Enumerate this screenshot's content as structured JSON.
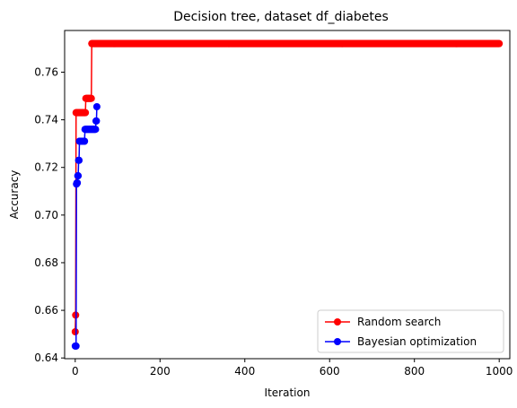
{
  "chart_data": {
    "type": "line",
    "title": "Decision tree, dataset df_diabetes",
    "xlabel": "Iteration",
    "ylabel": "Accuracy",
    "xlim": [
      -25,
      1025
    ],
    "ylim": [
      0.6397,
      0.7775
    ],
    "xticks": [
      0,
      200,
      400,
      600,
      800,
      1000
    ],
    "yticks": [
      0.64,
      0.66,
      0.68,
      0.7,
      0.72,
      0.74,
      0.76
    ],
    "ytick_labels": [
      "0.64",
      "0.66",
      "0.68",
      "0.70",
      "0.72",
      "0.74",
      "0.76"
    ],
    "grid": false,
    "legend_position": "lower right",
    "series": [
      {
        "name": "Random search",
        "color": "#ff0000",
        "marker": "circle",
        "segments": [
          {
            "x_start": 0,
            "x_end": 0,
            "y": 0.651
          },
          {
            "x_start": 1,
            "x_end": 1,
            "y": 0.658
          },
          {
            "x_start": 2,
            "x_end": 24,
            "y": 0.743
          },
          {
            "x_start": 25,
            "x_end": 38,
            "y": 0.749
          },
          {
            "x_start": 39,
            "x_end": 1000,
            "y": 0.772
          }
        ]
      },
      {
        "name": "Bayesian optimization",
        "color": "#0000ff",
        "marker": "circle",
        "segments": [
          {
            "x_start": 0,
            "x_end": 2,
            "y": 0.645
          },
          {
            "x_start": 3,
            "x_end": 3,
            "y": 0.713
          },
          {
            "x_start": 4,
            "x_end": 5,
            "y": 0.7135
          },
          {
            "x_start": 6,
            "x_end": 7,
            "y": 0.7165
          },
          {
            "x_start": 8,
            "x_end": 9,
            "y": 0.723
          },
          {
            "x_start": 10,
            "x_end": 22,
            "y": 0.731
          },
          {
            "x_start": 23,
            "x_end": 48,
            "y": 0.736
          },
          {
            "x_start": 49,
            "x_end": 50,
            "y": 0.7395
          },
          {
            "x_start": 51,
            "x_end": 51,
            "y": 0.7455
          }
        ]
      }
    ]
  }
}
